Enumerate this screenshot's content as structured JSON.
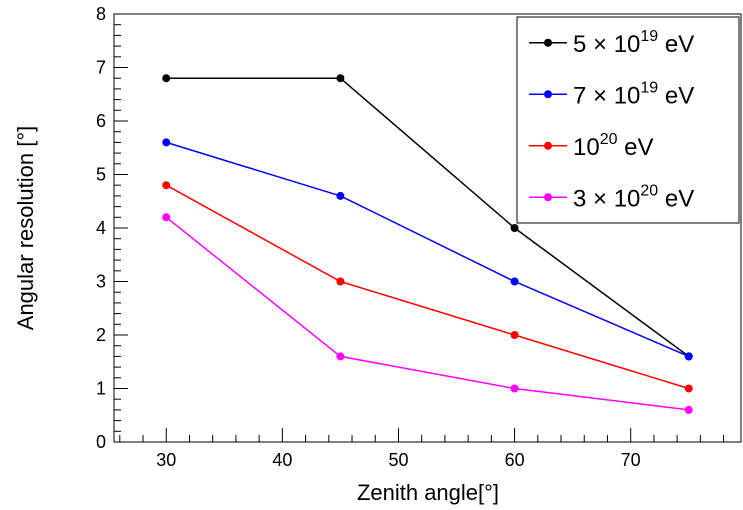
{
  "chart_data": {
    "type": "line",
    "xlabel": "Zenith angle[°]",
    "ylabel": "Angular resolution [°]",
    "xlim": [
      25.5,
      79.5
    ],
    "ylim": [
      0,
      8
    ],
    "xticks": [
      30,
      40,
      50,
      60,
      70
    ],
    "yticks": [
      0,
      1,
      2,
      3,
      4,
      5,
      6,
      7,
      8
    ],
    "x": [
      30,
      45,
      60,
      75
    ],
    "grid": false,
    "legend_position": "top-right",
    "series": [
      {
        "name": "5 × 10^19 eV",
        "legend": {
          "pre": "5 × 10",
          "sup": "19",
          "post": " eV"
        },
        "color": "#000000",
        "values": [
          6.8,
          6.8,
          4.0,
          1.6
        ]
      },
      {
        "name": "7 × 10^19 eV",
        "legend": {
          "pre": "7 × 10",
          "sup": "19",
          "post": " eV"
        },
        "color": "#0000ff",
        "values": [
          5.6,
          4.6,
          3.0,
          1.6
        ]
      },
      {
        "name": "10^20 eV",
        "legend": {
          "pre": "10",
          "sup": "20",
          "post": " eV"
        },
        "color": "#ff0000",
        "values": [
          4.8,
          3.0,
          2.0,
          1.0
        ]
      },
      {
        "name": "3 × 10^20 eV",
        "legend": {
          "pre": "3 × 10",
          "sup": "20",
          "post": " eV"
        },
        "color": "#ff00ff",
        "values": [
          4.2,
          1.6,
          1.0,
          0.6
        ]
      }
    ]
  }
}
